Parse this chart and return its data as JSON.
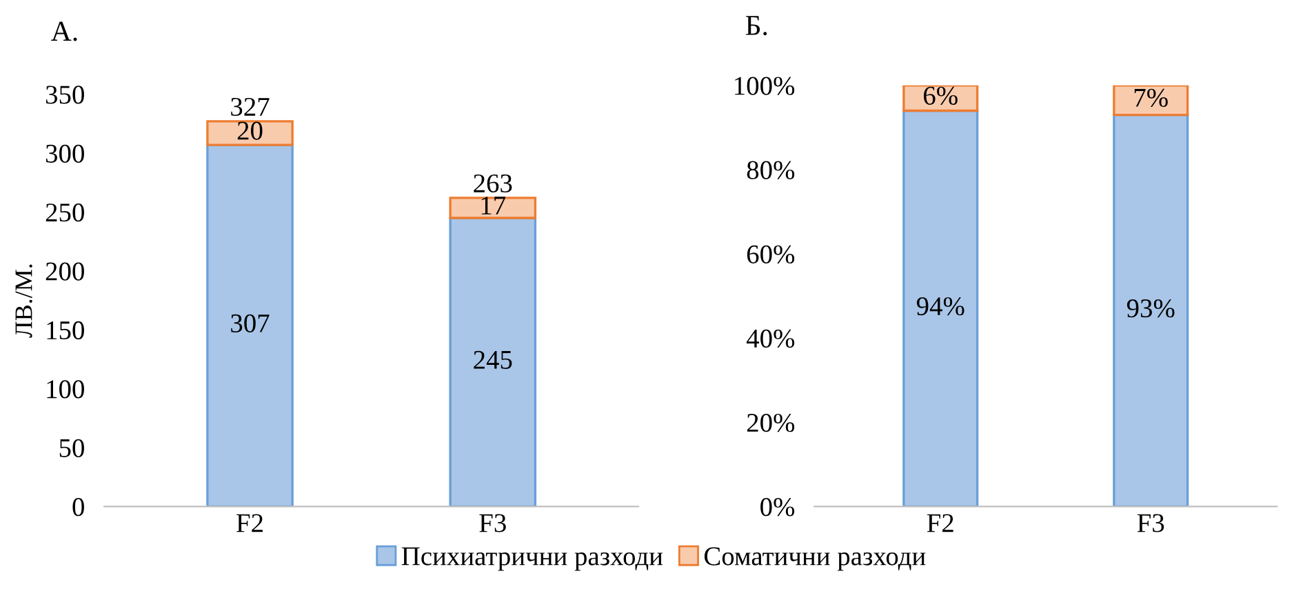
{
  "chart_data": [
    {
      "type": "bar",
      "title": "А.",
      "ylabel": "ЛВ./М.",
      "categories": [
        "F2",
        "F3"
      ],
      "stacked": true,
      "ylim": [
        0,
        350
      ],
      "yticks": [
        0,
        50,
        100,
        150,
        200,
        250,
        300,
        350
      ],
      "grid": false,
      "data_labels": true,
      "totals": [
        "327",
        "263"
      ],
      "legend": "bottom",
      "series": [
        {
          "name": "Психиатрични разходи",
          "color": "#a9c6e8",
          "values": [
            307,
            245
          ]
        },
        {
          "name": "Соматични разходи",
          "color": "#f8cbad",
          "values": [
            20,
            17
          ]
        }
      ]
    },
    {
      "type": "bar",
      "title": "Б.",
      "categories": [
        "F2",
        "F3"
      ],
      "stacked": true,
      "ylim": [
        0,
        100
      ],
      "yticks": [
        {
          "value": 0,
          "label": "0%"
        },
        {
          "value": 20,
          "label": "20%"
        },
        {
          "value": 40,
          "label": "40%"
        },
        {
          "value": 60,
          "label": "60%"
        },
        {
          "value": 80,
          "label": "80%"
        },
        {
          "value": 100,
          "label": "100%"
        }
      ],
      "grid": false,
      "series": [
        {
          "name": "Психиатрични разходи",
          "color": "#a9c6e8",
          "values": [
            94,
            93
          ],
          "value_labels": [
            "94%",
            "93%"
          ]
        },
        {
          "name": "Соматични разходи",
          "color": "#f8cbad",
          "values": [
            6,
            7
          ],
          "value_labels": [
            "6%",
            "7%"
          ]
        }
      ]
    }
  ]
}
